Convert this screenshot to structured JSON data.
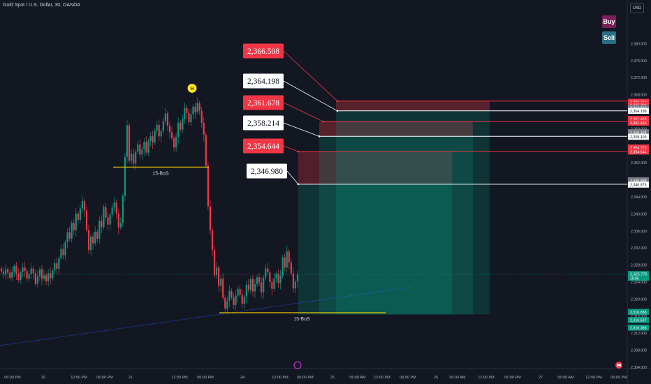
{
  "symbol_title": "Gold Spot / U.S. Dollar, 30, OANDA",
  "currency": "USD",
  "buttons": {
    "buy": "Buy",
    "sell": "Sell"
  },
  "colors": {
    "bg": "#131722",
    "bull": "#089981",
    "bear": "#f23645",
    "white": "#ffffff"
  },
  "chart_data": {
    "type": "candlestick",
    "title": "Gold Spot / U.S. Dollar, 30, OANDA",
    "ylim": [
      2304,
      2384
    ],
    "y_ticks": [
      2304,
      2308,
      2312,
      2316,
      2320,
      2324,
      2328,
      2332,
      2336,
      2340,
      2344,
      2348,
      2352,
      2356,
      2360,
      2364,
      2368,
      2372,
      2376,
      2380
    ],
    "x_ticks": [
      "06:00 PM",
      "20",
      "12:00 PM",
      "06:00 PM",
      "21",
      "12:00 PM",
      "06:00 PM",
      "24",
      "12:00 PM",
      "06:00 PM",
      "25",
      "06:00 AM",
      "12:00 PM",
      "06:00 PM",
      "26",
      "06:00 AM",
      "12:00 PM",
      "06:00 PM",
      "27",
      "06:00 AM",
      "12:00 PM",
      "06:00 PM"
    ],
    "current_price": "2,325.775",
    "countdown": "16:05",
    "levels": [
      {
        "label": "2,366.508",
        "price": 2366.508,
        "color": "#f23645"
      },
      {
        "label": "2,364.198",
        "price": 2364.198,
        "color": "#ffffff"
      },
      {
        "label": "2,361.678",
        "price": 2361.678,
        "color": "#f23645"
      },
      {
        "label": "2,358.214",
        "price": 2358.214,
        "color": "#ffffff"
      },
      {
        "label": "2,354.644",
        "price": 2354.644,
        "color": "#f23645"
      },
      {
        "label": "2,346.980",
        "price": 2346.98,
        "color": "#ffffff"
      }
    ],
    "axis_price_tags": [
      {
        "label": "2,366.319",
        "price": 2366.319,
        "color": "#f23645"
      },
      {
        "label": "2,366.298",
        "price": 2365.6,
        "color": "#f23645"
      },
      {
        "label": "2,364.312",
        "price": 2364.9,
        "color": "#787b86"
      },
      {
        "label": "2,364.198",
        "price": 2364.198,
        "color": "#ffffff"
      },
      {
        "label": "2,361.468",
        "price": 2362.3,
        "color": "#f23645"
      },
      {
        "label": "2,361.426",
        "price": 2361.426,
        "color": "#f23645"
      },
      {
        "label": "2,358.164",
        "price": 2359.2,
        "color": "#787b86"
      },
      {
        "label": "2,358.109",
        "price": 2358.109,
        "color": "#ffffff"
      },
      {
        "label": "2,354.776",
        "price": 2355.6,
        "color": "#f23645"
      },
      {
        "label": "2,354.644",
        "price": 2354.644,
        "color": "#f23645"
      },
      {
        "label": "2,346.998",
        "price": 2347.9,
        "color": "#787b86"
      },
      {
        "label": "2,346.875",
        "price": 2346.875,
        "color": "#ffffff"
      },
      {
        "label": "2,316.888",
        "price": 2317.0,
        "color": "#089981"
      },
      {
        "label": "2,316.637",
        "price": 2315.1,
        "color": "#089981"
      },
      {
        "label": "2,316.386",
        "price": 2313.3,
        "color": "#089981"
      }
    ],
    "annotations": [
      {
        "text": "15-BoS",
        "price": 2351.0
      },
      {
        "text": "15-BoS",
        "price": 2316.8
      },
      {
        "text": "H",
        "price": 2369.5
      }
    ],
    "closes": [
      2326.5,
      2325.8,
      2327.0,
      2326.2,
      2325.0,
      2326.4,
      2327.8,
      2326.0,
      2324.5,
      2326.3,
      2327.5,
      2326.6,
      2324.8,
      2325.9,
      2327.2,
      2326.1,
      2323.6,
      2325.4,
      2327.0,
      2324.8,
      2325.6,
      2324.2,
      2326.1,
      2324.9,
      2326.7,
      2328.4,
      2327.1,
      2329.6,
      2331.8,
      2330.3,
      2333.4,
      2335.7,
      2334.2,
      2337.9,
      2336.2,
      2340.1,
      2338.6,
      2341.3,
      2343.0,
      2340.8,
      2336.2,
      2331.5,
      2334.7,
      2333.1,
      2335.8,
      2334.2,
      2338.4,
      2336.9,
      2341.6,
      2339.2,
      2337.5,
      2339.8,
      2341.5,
      2342.7,
      2340.1,
      2336.8,
      2337.9,
      2344.2,
      2353.4,
      2360.8,
      2352.5,
      2354.1,
      2351.8,
      2354.6,
      2356.3,
      2353.9,
      2355.2,
      2356.9,
      2354.4,
      2357.1,
      2358.3,
      2356.8,
      2359.5,
      2360.9,
      2358.2,
      2359.4,
      2361.8,
      2363.6,
      2360.7,
      2359.2,
      2357.8,
      2355.6,
      2358.1,
      2361.4,
      2359.8,
      2362.3,
      2364.9,
      2363.7,
      2361.5,
      2363.4,
      2365.2,
      2363.9,
      2366.0,
      2364.2,
      2361.4,
      2358.6,
      2351.3,
      2341.8,
      2336.2,
      2331.5,
      2325.6,
      2327.4,
      2323.1,
      2324.8,
      2320.3,
      2317.8,
      2319.6,
      2321.9,
      2320.4,
      2318.6,
      2320.8,
      2322.4,
      2321.0,
      2318.9,
      2320.6,
      2323.4,
      2322.1,
      2324.7,
      2321.8,
      2323.5,
      2325.1,
      2323.9,
      2321.6,
      2325.0,
      2327.2,
      2326.3,
      2324.0,
      2322.4,
      2324.8,
      2326.0,
      2323.8,
      2325.5,
      2329.8,
      2327.4,
      2331.2,
      2328.6,
      2326.1,
      2322.5,
      2324.1,
      2325.775
    ]
  }
}
